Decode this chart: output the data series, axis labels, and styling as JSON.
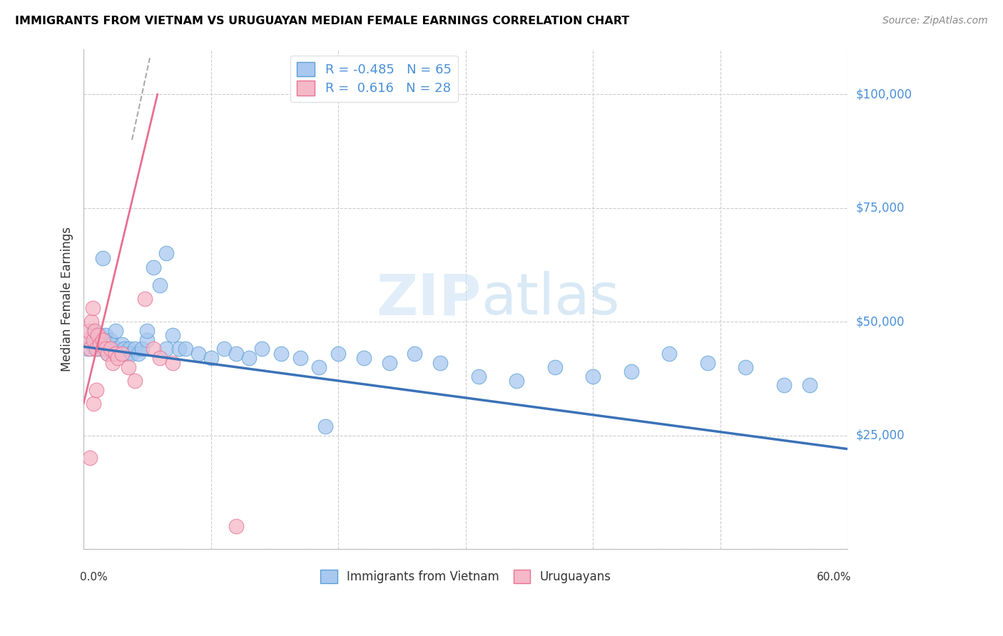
{
  "title": "IMMIGRANTS FROM VIETNAM VS URUGUAYAN MEDIAN FEMALE EARNINGS CORRELATION CHART",
  "source": "Source: ZipAtlas.com",
  "ylabel": "Median Female Earnings",
  "y_ticks": [
    0,
    25000,
    50000,
    75000,
    100000
  ],
  "y_tick_labels": [
    "",
    "$25,000",
    "$50,000",
    "$75,000",
    "$100,000"
  ],
  "x_min": 0.0,
  "x_max": 0.6,
  "y_min": 0,
  "y_max": 110000,
  "color_blue_fill": "#A8C8F0",
  "color_blue_edge": "#5A9FD4",
  "color_pink_fill": "#F5B8C8",
  "color_pink_edge": "#E87090",
  "color_blue_line": "#3A72B8",
  "color_pink_line": "#E87090",
  "color_grid": "#CCCCCC",
  "color_ytick_label": "#4A90D9",
  "legend_blue_label": "Immigrants from Vietnam",
  "legend_pink_label": "Uruguayans",
  "legend_R_blue": "-0.485",
  "legend_N_blue": "65",
  "legend_R_pink": "0.616",
  "legend_N_pink": "28",
  "blue_x": [
    0.003,
    0.005,
    0.007,
    0.008,
    0.009,
    0.01,
    0.011,
    0.012,
    0.013,
    0.014,
    0.015,
    0.016,
    0.017,
    0.018,
    0.019,
    0.02,
    0.021,
    0.022,
    0.024,
    0.026,
    0.028,
    0.03,
    0.032,
    0.034,
    0.036,
    0.038,
    0.04,
    0.043,
    0.046,
    0.05,
    0.055,
    0.06,
    0.065,
    0.07,
    0.075,
    0.08,
    0.09,
    0.1,
    0.11,
    0.12,
    0.13,
    0.14,
    0.155,
    0.17,
    0.185,
    0.2,
    0.22,
    0.24,
    0.26,
    0.28,
    0.31,
    0.34,
    0.37,
    0.4,
    0.43,
    0.46,
    0.49,
    0.52,
    0.55,
    0.57,
    0.015,
    0.025,
    0.05,
    0.065,
    0.19
  ],
  "blue_y": [
    44000,
    46000,
    45000,
    48000,
    44000,
    46000,
    45000,
    44000,
    47000,
    45000,
    46000,
    44000,
    47000,
    45000,
    43000,
    44000,
    46000,
    45000,
    43000,
    44000,
    43000,
    45000,
    44000,
    43000,
    44000,
    43000,
    44000,
    43000,
    44000,
    46000,
    62000,
    58000,
    44000,
    47000,
    44000,
    44000,
    43000,
    42000,
    44000,
    43000,
    42000,
    44000,
    43000,
    42000,
    40000,
    43000,
    42000,
    41000,
    43000,
    41000,
    38000,
    37000,
    40000,
    38000,
    39000,
    43000,
    41000,
    40000,
    36000,
    36000,
    64000,
    48000,
    48000,
    65000,
    27000
  ],
  "pink_x": [
    0.002,
    0.004,
    0.005,
    0.006,
    0.007,
    0.008,
    0.009,
    0.01,
    0.011,
    0.013,
    0.015,
    0.017,
    0.019,
    0.021,
    0.023,
    0.025,
    0.027,
    0.03,
    0.035,
    0.04,
    0.048,
    0.055,
    0.06,
    0.07,
    0.005,
    0.008,
    0.01,
    0.12
  ],
  "pink_y": [
    46000,
    48000,
    44000,
    50000,
    53000,
    46000,
    48000,
    44000,
    47000,
    45000,
    46000,
    44000,
    43000,
    44000,
    41000,
    43000,
    42000,
    43000,
    40000,
    37000,
    55000,
    44000,
    42000,
    41000,
    20000,
    32000,
    35000,
    5000
  ]
}
